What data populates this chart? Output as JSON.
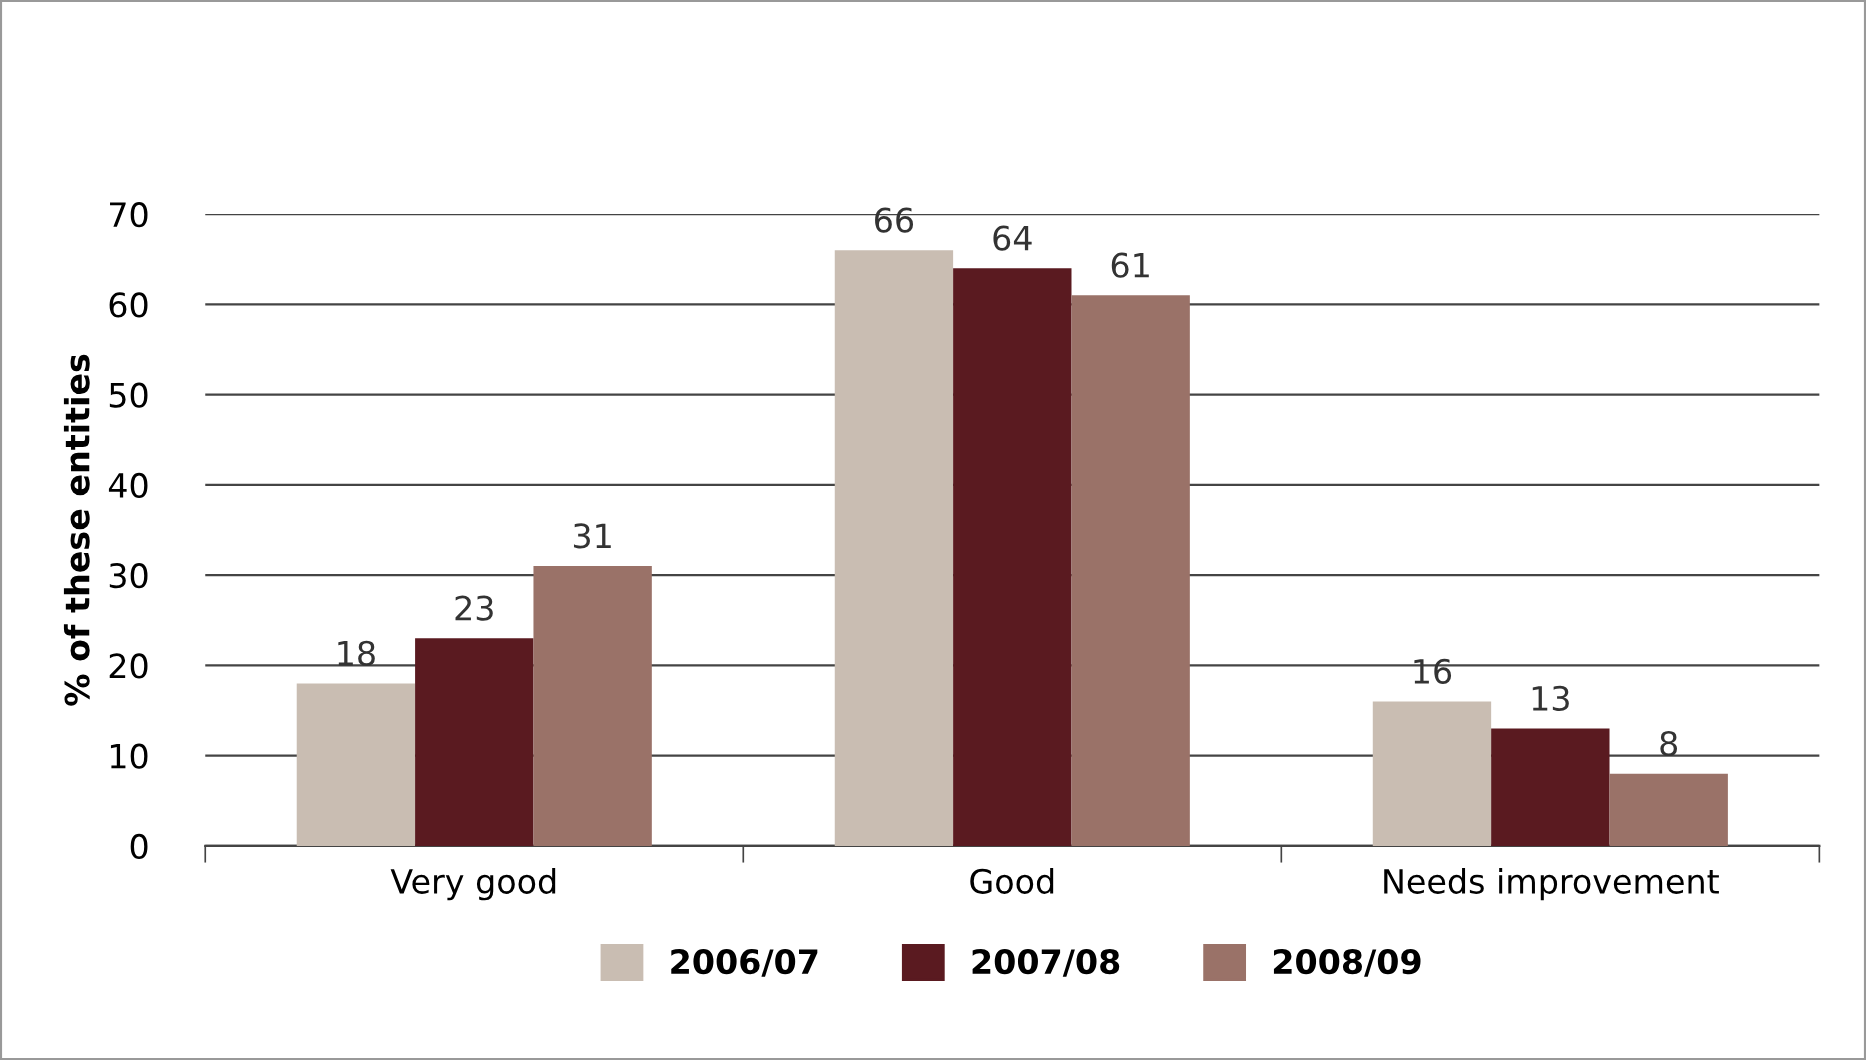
{
  "chart_data": {
    "type": "bar",
    "ylabel": "% of these entities",
    "categories": [
      "Very good",
      "Good",
      "Needs improvement"
    ],
    "series": [
      {
        "name": "2006/07",
        "color": "#c9bdb2",
        "values": [
          18,
          66,
          16
        ]
      },
      {
        "name": "2007/08",
        "color": "#5a1a20",
        "values": [
          23,
          64,
          13
        ]
      },
      {
        "name": "2008/09",
        "color": "#9a7268",
        "values": [
          31,
          61,
          8
        ]
      }
    ],
    "ylim": [
      0,
      70
    ],
    "yticks": [
      0,
      10,
      20,
      30,
      40,
      50,
      60,
      70
    ],
    "grid": "y",
    "legend": "bottom",
    "data_labels": true
  }
}
